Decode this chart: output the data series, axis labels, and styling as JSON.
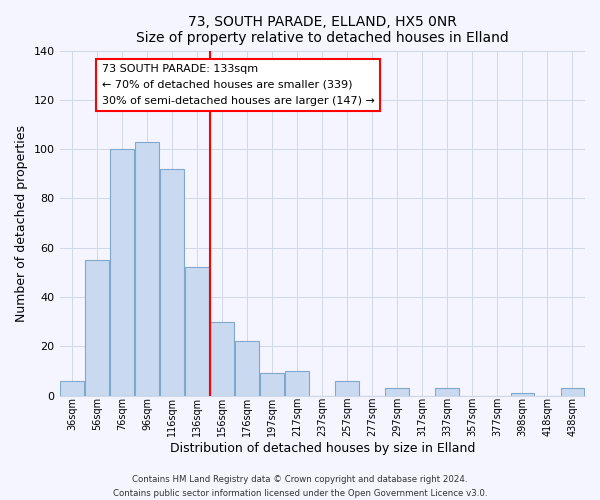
{
  "title": "73, SOUTH PARADE, ELLAND, HX5 0NR",
  "subtitle": "Size of property relative to detached houses in Elland",
  "xlabel": "Distribution of detached houses by size in Elland",
  "ylabel": "Number of detached properties",
  "bar_labels": [
    "36sqm",
    "56sqm",
    "76sqm",
    "96sqm",
    "116sqm",
    "136sqm",
    "156sqm",
    "176sqm",
    "197sqm",
    "217sqm",
    "237sqm",
    "257sqm",
    "277sqm",
    "297sqm",
    "317sqm",
    "337sqm",
    "357sqm",
    "377sqm",
    "398sqm",
    "418sqm",
    "438sqm"
  ],
  "bar_values": [
    6,
    55,
    100,
    103,
    92,
    52,
    30,
    22,
    9,
    10,
    0,
    6,
    0,
    3,
    0,
    3,
    0,
    0,
    1,
    0,
    3
  ],
  "bar_color": "#c9daf0",
  "bar_edge_color": "#7fa8cc",
  "vline_color": "red",
  "vline_x": 5.5,
  "ylim": [
    0,
    140
  ],
  "yticks": [
    0,
    20,
    40,
    60,
    80,
    100,
    120,
    140
  ],
  "annotation_title": "73 SOUTH PARADE: 133sqm",
  "annotation_line1": "← 70% of detached houses are smaller (339)",
  "annotation_line2": "30% of semi-detached houses are larger (147) →",
  "annotation_box_color": "#ffffff",
  "annotation_box_edge": "red",
  "footer1": "Contains HM Land Registry data © Crown copyright and database right 2024.",
  "footer2": "Contains public sector information licensed under the Open Government Licence v3.0.",
  "bg_color": "#f5f5ff"
}
